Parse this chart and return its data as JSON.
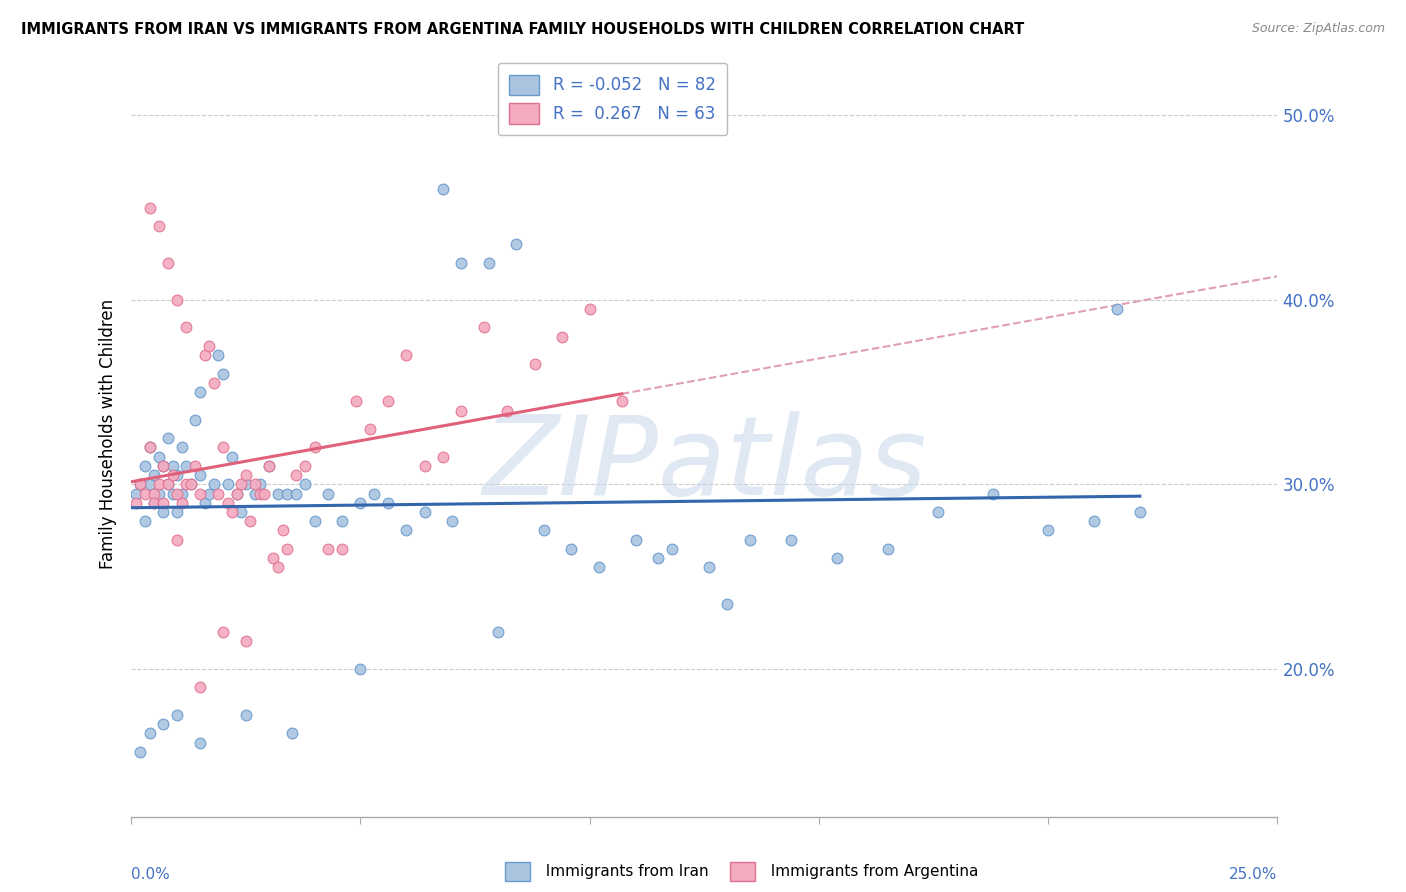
{
  "title": "IMMIGRANTS FROM IRAN VS IMMIGRANTS FROM ARGENTINA FAMILY HOUSEHOLDS WITH CHILDREN CORRELATION CHART",
  "source": "Source: ZipAtlas.com",
  "ylabel": "Family Households with Children",
  "xlim": [
    0.0,
    0.25
  ],
  "ylim": [
    0.12,
    0.535
  ],
  "iran_R": -0.052,
  "iran_N": 82,
  "argentina_R": 0.267,
  "argentina_N": 63,
  "iran_color": "#aac4e0",
  "iran_edge_color": "#6699cc",
  "argentina_color": "#f4aabf",
  "argentina_edge_color": "#e07090",
  "iran_line_color": "#3366aa",
  "argentina_line_color": "#e0607a",
  "dash_line_color": "#e0a0b0",
  "watermark_color": "#c8d8ea",
  "grid_color": "#cccccc",
  "y_ticks": [
    0.2,
    0.3,
    0.4,
    0.5
  ],
  "y_tick_labels": [
    "20.0%",
    "30.0%",
    "40.0%",
    "50.0%"
  ],
  "tick_label_color": "#4472C4",
  "iran_x": [
    0.001,
    0.002,
    0.003,
    0.003,
    0.004,
    0.004,
    0.005,
    0.005,
    0.006,
    0.006,
    0.007,
    0.007,
    0.008,
    0.008,
    0.009,
    0.009,
    0.01,
    0.01,
    0.011,
    0.011,
    0.012,
    0.013,
    0.014,
    0.015,
    0.015,
    0.016,
    0.017,
    0.018,
    0.019,
    0.02,
    0.021,
    0.022,
    0.023,
    0.024,
    0.025,
    0.027,
    0.028,
    0.03,
    0.032,
    0.034,
    0.036,
    0.038,
    0.04,
    0.043,
    0.046,
    0.05,
    0.053,
    0.056,
    0.06,
    0.064,
    0.068,
    0.072,
    0.078,
    0.084,
    0.09,
    0.096,
    0.102,
    0.11,
    0.118,
    0.126,
    0.135,
    0.144,
    0.154,
    0.165,
    0.176,
    0.188,
    0.2,
    0.21,
    0.215,
    0.22,
    0.115,
    0.13,
    0.07,
    0.08,
    0.05,
    0.035,
    0.025,
    0.015,
    0.01,
    0.007,
    0.004,
    0.002
  ],
  "iran_y": [
    0.295,
    0.3,
    0.31,
    0.28,
    0.3,
    0.32,
    0.29,
    0.305,
    0.295,
    0.315,
    0.285,
    0.31,
    0.3,
    0.325,
    0.295,
    0.31,
    0.305,
    0.285,
    0.295,
    0.32,
    0.31,
    0.3,
    0.335,
    0.35,
    0.305,
    0.29,
    0.295,
    0.3,
    0.37,
    0.36,
    0.3,
    0.315,
    0.295,
    0.285,
    0.3,
    0.295,
    0.3,
    0.31,
    0.295,
    0.295,
    0.295,
    0.3,
    0.28,
    0.295,
    0.28,
    0.29,
    0.295,
    0.29,
    0.275,
    0.285,
    0.46,
    0.42,
    0.42,
    0.43,
    0.275,
    0.265,
    0.255,
    0.27,
    0.265,
    0.255,
    0.27,
    0.27,
    0.26,
    0.265,
    0.285,
    0.295,
    0.275,
    0.28,
    0.395,
    0.285,
    0.26,
    0.235,
    0.28,
    0.22,
    0.2,
    0.165,
    0.175,
    0.16,
    0.175,
    0.17,
    0.165,
    0.155
  ],
  "arg_x": [
    0.001,
    0.002,
    0.003,
    0.004,
    0.005,
    0.005,
    0.006,
    0.007,
    0.007,
    0.008,
    0.009,
    0.01,
    0.01,
    0.011,
    0.012,
    0.013,
    0.014,
    0.015,
    0.016,
    0.017,
    0.018,
    0.019,
    0.02,
    0.021,
    0.022,
    0.023,
    0.024,
    0.025,
    0.026,
    0.027,
    0.028,
    0.029,
    0.03,
    0.031,
    0.032,
    0.033,
    0.034,
    0.036,
    0.038,
    0.04,
    0.043,
    0.046,
    0.049,
    0.052,
    0.056,
    0.06,
    0.064,
    0.068,
    0.072,
    0.077,
    0.082,
    0.088,
    0.094,
    0.1,
    0.107,
    0.004,
    0.006,
    0.008,
    0.01,
    0.012,
    0.015,
    0.02,
    0.025
  ],
  "arg_y": [
    0.29,
    0.3,
    0.295,
    0.32,
    0.295,
    0.29,
    0.3,
    0.29,
    0.31,
    0.3,
    0.305,
    0.295,
    0.27,
    0.29,
    0.3,
    0.3,
    0.31,
    0.295,
    0.37,
    0.375,
    0.355,
    0.295,
    0.32,
    0.29,
    0.285,
    0.295,
    0.3,
    0.305,
    0.28,
    0.3,
    0.295,
    0.295,
    0.31,
    0.26,
    0.255,
    0.275,
    0.265,
    0.305,
    0.31,
    0.32,
    0.265,
    0.265,
    0.345,
    0.33,
    0.345,
    0.37,
    0.31,
    0.315,
    0.34,
    0.385,
    0.34,
    0.365,
    0.38,
    0.395,
    0.345,
    0.45,
    0.44,
    0.42,
    0.4,
    0.385,
    0.19,
    0.22,
    0.215
  ]
}
